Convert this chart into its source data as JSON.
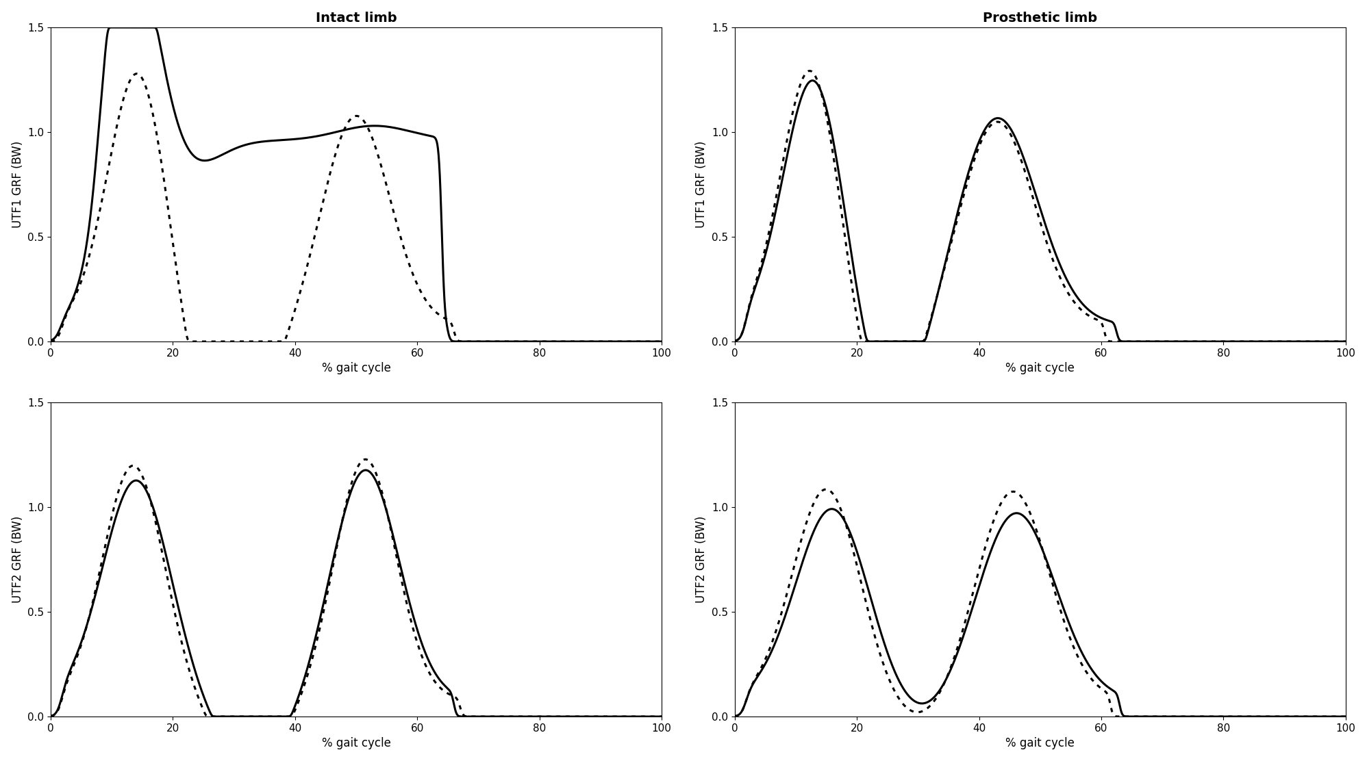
{
  "titles_top": [
    "Intact limb",
    "Prosthetic limb"
  ],
  "ylabels_top": [
    "UTF1 GRF (BW)",
    "UTF1 GRF (BW)"
  ],
  "ylabels_bot": [
    "UTF2 GRF (BW)",
    "UTF2 GRF (BW)"
  ],
  "xlabel": "% gait cycle",
  "ylim": [
    0,
    1.5
  ],
  "xlim": [
    0,
    100
  ],
  "yticks": [
    0,
    0.5,
    1.0,
    1.5
  ],
  "xticks": [
    0,
    20,
    40,
    60,
    80,
    100
  ],
  "solid_lw": 2.2,
  "dotted_lw": 2.2,
  "background_color": "#ffffff",
  "line_color": "#000000",
  "title_fontsize": 14,
  "label_fontsize": 12,
  "tick_fontsize": 11
}
